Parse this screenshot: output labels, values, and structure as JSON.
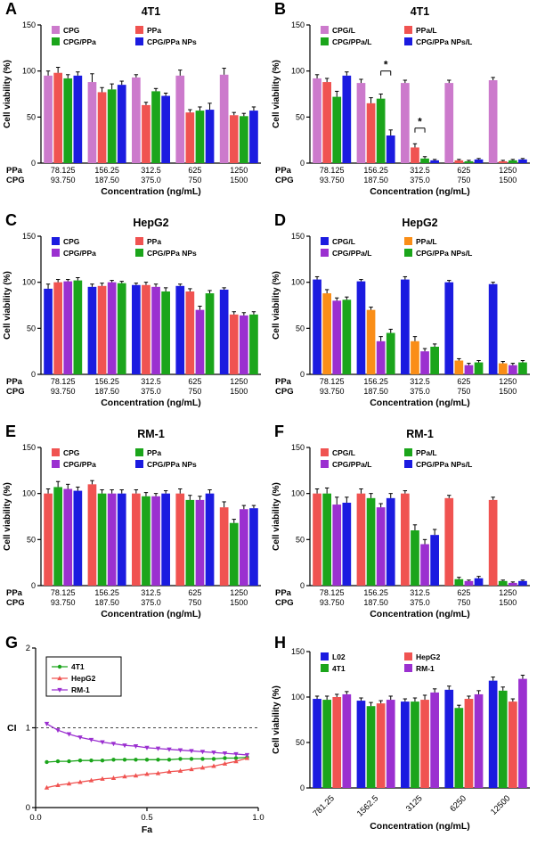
{
  "page": {
    "background": "#ffffff"
  },
  "chart_data": [
    {
      "panel": "A",
      "type": "bar",
      "title": "4T1",
      "ylabel": "Cell viability (%)",
      "xlabel": "Concentration (ng/mL)",
      "ylim": [
        0,
        150
      ],
      "yticks": [
        0,
        50,
        100,
        150
      ],
      "group_rows": [
        {
          "label": "PPa",
          "values": [
            "78.125",
            "156.25",
            "312.5",
            "625",
            "1250"
          ]
        },
        {
          "label": "CPG",
          "values": [
            "93.750",
            "187.50",
            "375.0",
            "750",
            "1500"
          ]
        }
      ],
      "legend_order": [
        0,
        1,
        2,
        3
      ],
      "series": [
        {
          "name": "CPG",
          "color": "#CC7ACC",
          "values": [
            95,
            88,
            93,
            95,
            96
          ],
          "errors": [
            5,
            9,
            3,
            6,
            7
          ]
        },
        {
          "name": "PPa",
          "color": "#F05351",
          "values": [
            98,
            77,
            63,
            55,
            52
          ],
          "errors": [
            6,
            5,
            3,
            3,
            3
          ]
        },
        {
          "name": "CPG/PPa",
          "color": "#1BA51B",
          "values": [
            92,
            80,
            78,
            57,
            51
          ],
          "errors": [
            4,
            6,
            3,
            4,
            3
          ]
        },
        {
          "name": "CPG/PPa NPs",
          "color": "#1B1BE0",
          "values": [
            95,
            85,
            73,
            58,
            57
          ],
          "errors": [
            4,
            4,
            3,
            7,
            4
          ]
        }
      ]
    },
    {
      "panel": "B",
      "type": "bar",
      "title": "4T1",
      "ylabel": "Cell viability (%)",
      "xlabel": "Concentration (ng/mL)",
      "ylim": [
        0,
        150
      ],
      "yticks": [
        0,
        50,
        100,
        150
      ],
      "group_rows": [
        {
          "label": "PPa",
          "values": [
            "78.125",
            "156.25",
            "312.5",
            "625",
            "1250"
          ]
        },
        {
          "label": "CPG",
          "values": [
            "93.750",
            "187.50",
            "375.0",
            "750",
            "1500"
          ]
        }
      ],
      "legend_order": [
        0,
        1,
        2,
        3
      ],
      "annotations": [
        {
          "group": 1,
          "s1": 2,
          "s2": 3,
          "y": 100,
          "label": "*"
        },
        {
          "group": 2,
          "s1": 1,
          "s2": 2,
          "y": 38,
          "label": "*"
        }
      ],
      "series": [
        {
          "name": "CPG/L",
          "color": "#CC7ACC",
          "values": [
            92,
            87,
            87,
            87,
            90
          ],
          "errors": [
            4,
            4,
            3,
            3,
            3
          ]
        },
        {
          "name": "PPa/L",
          "color": "#F05351",
          "values": [
            88,
            65,
            17,
            3,
            2
          ],
          "errors": [
            4,
            6,
            4,
            1,
            1
          ]
        },
        {
          "name": "CPG/PPa/L",
          "color": "#1BA51B",
          "values": [
            72,
            70,
            5,
            2,
            3
          ],
          "errors": [
            6,
            5,
            2,
            1,
            1
          ]
        },
        {
          "name": "CPG/PPa NPs/L",
          "color": "#1B1BE0",
          "values": [
            95,
            30,
            3,
            4,
            4
          ],
          "errors": [
            4,
            6,
            1,
            1,
            1
          ]
        }
      ]
    },
    {
      "panel": "C",
      "type": "bar",
      "title": "HepG2",
      "ylabel": "Cell viability (%)",
      "xlabel": "Concentration (ng/mL)",
      "ylim": [
        0,
        150
      ],
      "yticks": [
        0,
        50,
        100,
        150
      ],
      "group_rows": [
        {
          "label": "PPa",
          "values": [
            "78.125",
            "156.25",
            "312.5",
            "625",
            "1250"
          ]
        },
        {
          "label": "CPG",
          "values": [
            "93.750",
            "187.50",
            "375.0",
            "750",
            "1500"
          ]
        }
      ],
      "legend_order": [
        0,
        1,
        2,
        3
      ],
      "series": [
        {
          "name": "CPG",
          "color": "#1B1BE0",
          "values": [
            93,
            95,
            97,
            96,
            92
          ],
          "errors": [
            5,
            3,
            2,
            2,
            2
          ]
        },
        {
          "name": "PPa",
          "color": "#F05351",
          "values": [
            100,
            96,
            97,
            90,
            65
          ],
          "errors": [
            3,
            3,
            3,
            3,
            3
          ]
        },
        {
          "name": "CPG/PPa",
          "color": "#9B30D0",
          "values": [
            101,
            100,
            95,
            70,
            64
          ],
          "errors": [
            2,
            2,
            3,
            4,
            3
          ]
        },
        {
          "name": "CPG/PPa NPs",
          "color": "#1BA51B",
          "values": [
            102,
            99,
            90,
            88,
            65
          ],
          "errors": [
            3,
            2,
            4,
            3,
            3
          ]
        }
      ]
    },
    {
      "panel": "D",
      "type": "bar",
      "title": "HepG2",
      "ylabel": "Cell viability (%)",
      "xlabel": "Concentration (ng/mL)",
      "ylim": [
        0,
        150
      ],
      "yticks": [
        0,
        50,
        100,
        150
      ],
      "group_rows": [
        {
          "label": "PPa",
          "values": [
            "78.125",
            "156.25",
            "312.5",
            "625",
            "1250"
          ]
        },
        {
          "label": "CPG",
          "values": [
            "93.750",
            "187.50",
            "375.0",
            "750",
            "1500"
          ]
        }
      ],
      "legend_order": [
        0,
        1,
        2,
        3
      ],
      "series": [
        {
          "name": "CPG/L",
          "color": "#1B1BE0",
          "values": [
            103,
            101,
            103,
            100,
            98
          ],
          "errors": [
            3,
            2,
            3,
            2,
            2
          ]
        },
        {
          "name": "PPa/L",
          "color": "#FA8E17",
          "values": [
            88,
            70,
            36,
            15,
            12
          ],
          "errors": [
            4,
            3,
            5,
            2,
            2
          ]
        },
        {
          "name": "CPG/PPa/L",
          "color": "#9B30D0",
          "values": [
            80,
            36,
            25,
            10,
            10
          ],
          "errors": [
            3,
            5,
            3,
            2,
            2
          ]
        },
        {
          "name": "CPG/PPa NPs/L",
          "color": "#1BA51B",
          "values": [
            81,
            45,
            30,
            13,
            13
          ],
          "errors": [
            3,
            4,
            3,
            2,
            2
          ]
        }
      ]
    },
    {
      "panel": "E",
      "type": "bar",
      "title": "RM-1",
      "ylabel": "Cell viability (%)",
      "xlabel": "Concentration (ng/mL)",
      "ylim": [
        0,
        150
      ],
      "yticks": [
        0,
        50,
        100,
        150
      ],
      "group_rows": [
        {
          "label": "PPa",
          "values": [
            "78.125",
            "156.25",
            "312.5",
            "625",
            "1250"
          ]
        },
        {
          "label": "CPG",
          "values": [
            "93.750",
            "187.50",
            "375.0",
            "750",
            "1500"
          ]
        }
      ],
      "legend_order": [
        0,
        1,
        2,
        3
      ],
      "series": [
        {
          "name": "CPG",
          "color": "#F05351",
          "values": [
            100,
            110,
            100,
            100,
            85
          ],
          "errors": [
            5,
            4,
            4,
            5,
            6
          ]
        },
        {
          "name": "PPa",
          "color": "#1BA51B",
          "values": [
            107,
            100,
            97,
            93,
            68
          ],
          "errors": [
            6,
            4,
            4,
            5,
            4
          ]
        },
        {
          "name": "CPG/PPa",
          "color": "#9B30D0",
          "values": [
            105,
            100,
            97,
            93,
            83
          ],
          "errors": [
            5,
            4,
            3,
            4,
            4
          ]
        },
        {
          "name": "CPG/PPa NPs",
          "color": "#1B1BE0",
          "values": [
            103,
            100,
            100,
            100,
            84
          ],
          "errors": [
            4,
            4,
            3,
            4,
            3
          ]
        }
      ]
    },
    {
      "panel": "F",
      "type": "bar",
      "title": "RM-1",
      "ylabel": "Cell viability (%)",
      "xlabel": "Concentration (ng/mL)",
      "ylim": [
        0,
        150
      ],
      "yticks": [
        0,
        50,
        100,
        150
      ],
      "group_rows": [
        {
          "label": "PPa",
          "values": [
            "78.125",
            "156.25",
            "312.5",
            "625",
            "1250"
          ]
        },
        {
          "label": "CPG",
          "values": [
            "93.750",
            "187.50",
            "375.0",
            "750",
            "1500"
          ]
        }
      ],
      "legend_order": [
        0,
        1,
        2,
        3
      ],
      "series": [
        {
          "name": "CPG/L",
          "color": "#F05351",
          "values": [
            100,
            100,
            100,
            95,
            93
          ],
          "errors": [
            5,
            5,
            3,
            3,
            3
          ]
        },
        {
          "name": "PPa/L",
          "color": "#1BA51B",
          "values": [
            100,
            95,
            60,
            7,
            5
          ],
          "errors": [
            6,
            5,
            6,
            2,
            1
          ]
        },
        {
          "name": "CPG/PPa/L",
          "color": "#9B30D0",
          "values": [
            88,
            85,
            45,
            5,
            3
          ],
          "errors": [
            8,
            4,
            5,
            1,
            1
          ]
        },
        {
          "name": "CPG/PPa NPs/L",
          "color": "#1B1BE0",
          "values": [
            90,
            95,
            55,
            8,
            5
          ],
          "errors": [
            6,
            5,
            6,
            2,
            1
          ]
        }
      ]
    },
    {
      "panel": "G",
      "type": "line",
      "title": "",
      "ylabel": "CI",
      "xlabel": "Fa",
      "ylim": [
        0,
        2
      ],
      "yticks": [
        0,
        1,
        2
      ],
      "xlim": [
        0,
        1
      ],
      "xticks": [
        0,
        0.5,
        1
      ],
      "xtick_labels": [
        "0.0",
        "0.5",
        "1.0"
      ],
      "refline_y": 1,
      "x": [
        0.05,
        0.1,
        0.15,
        0.2,
        0.25,
        0.3,
        0.35,
        0.4,
        0.45,
        0.5,
        0.55,
        0.6,
        0.65,
        0.7,
        0.75,
        0.8,
        0.85,
        0.9,
        0.95
      ],
      "series": [
        {
          "name": "4T1",
          "color": "#1BA51B",
          "marker": "circle",
          "values": [
            0.57,
            0.58,
            0.58,
            0.59,
            0.59,
            0.59,
            0.6,
            0.6,
            0.6,
            0.6,
            0.6,
            0.6,
            0.61,
            0.61,
            0.61,
            0.61,
            0.62,
            0.62,
            0.63
          ]
        },
        {
          "name": "HepG2",
          "color": "#F05351",
          "marker": "triangle-up",
          "values": [
            0.25,
            0.28,
            0.3,
            0.32,
            0.34,
            0.36,
            0.37,
            0.39,
            0.4,
            0.42,
            0.43,
            0.45,
            0.46,
            0.48,
            0.5,
            0.52,
            0.55,
            0.58,
            0.62
          ]
        },
        {
          "name": "RM-1",
          "color": "#9B30D0",
          "marker": "triangle-down",
          "values": [
            1.05,
            0.97,
            0.92,
            0.88,
            0.85,
            0.82,
            0.8,
            0.78,
            0.77,
            0.75,
            0.74,
            0.73,
            0.72,
            0.71,
            0.7,
            0.69,
            0.68,
            0.67,
            0.66
          ]
        }
      ]
    },
    {
      "panel": "H",
      "type": "bar",
      "title": "",
      "ylabel": "Cell viability (%)",
      "xlabel": "Concentration (ng/mL)",
      "ylim": [
        0,
        150
      ],
      "yticks": [
        0,
        50,
        100,
        150
      ],
      "categories": [
        "781.25",
        "1562.5",
        "3125",
        "6250",
        "12500"
      ],
      "rotate_labels": true,
      "legend_order": [
        0,
        2,
        1,
        3
      ],
      "series": [
        {
          "name": "L02",
          "color": "#1B1BE0",
          "values": [
            98,
            96,
            95,
            108,
            118
          ],
          "errors": [
            3,
            3,
            3,
            4,
            4
          ]
        },
        {
          "name": "4T1",
          "color": "#1BA51B",
          "values": [
            97,
            90,
            95,
            88,
            107
          ],
          "errors": [
            4,
            4,
            4,
            3,
            4
          ]
        },
        {
          "name": "HepG2",
          "color": "#F05351",
          "values": [
            100,
            93,
            97,
            98,
            95
          ],
          "errors": [
            3,
            3,
            5,
            3,
            3
          ]
        },
        {
          "name": "RM-1",
          "color": "#9B30D0",
          "values": [
            103,
            97,
            105,
            103,
            120
          ],
          "errors": [
            3,
            4,
            4,
            4,
            4
          ]
        }
      ]
    }
  ]
}
